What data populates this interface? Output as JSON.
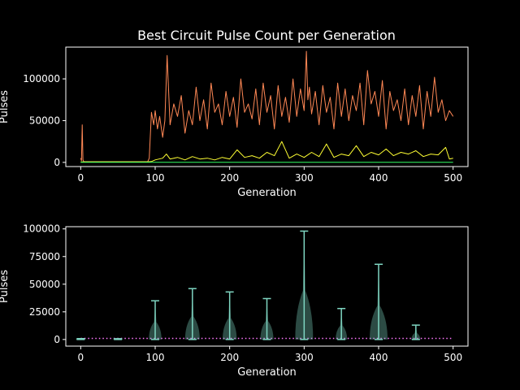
{
  "title": "Best Circuit Pulse Count per Generation",
  "colors": {
    "background": "#000000",
    "axes": "#ffffff",
    "max_line": "#ff8855",
    "mean_line": "#ffff33",
    "best_line": "#33ff66",
    "violin": "#7fd6c2",
    "dotted": "#ff77ff"
  },
  "chart_data": [
    {
      "type": "line",
      "title": "Best Circuit Pulse Count per Generation",
      "xlabel": "Generation",
      "ylabel": "Pulses",
      "xlim": [
        -20,
        520
      ],
      "ylim": [
        -5000,
        138000
      ],
      "xticks": [
        0,
        100,
        200,
        300,
        400,
        500
      ],
      "yticks": [
        0,
        50000,
        100000
      ],
      "ytick_labels": [
        "0",
        "50000",
        "100000"
      ],
      "grid": false,
      "series": [
        {
          "color": "#ff8855",
          "x": [
            0,
            1,
            2,
            3,
            4,
            5,
            10,
            20,
            30,
            40,
            50,
            60,
            70,
            80,
            90,
            92,
            95,
            98,
            100,
            103,
            106,
            110,
            113,
            116,
            120,
            125,
            130,
            135,
            140,
            145,
            150,
            155,
            160,
            165,
            170,
            175,
            180,
            185,
            190,
            195,
            200,
            205,
            210,
            215,
            220,
            225,
            230,
            235,
            240,
            245,
            250,
            255,
            260,
            265,
            270,
            275,
            280,
            285,
            290,
            295,
            300,
            303,
            305,
            307,
            310,
            315,
            320,
            325,
            330,
            335,
            340,
            345,
            350,
            355,
            360,
            365,
            370,
            375,
            380,
            385,
            390,
            395,
            400,
            405,
            410,
            415,
            420,
            425,
            430,
            435,
            440,
            445,
            450,
            455,
            460,
            465,
            470,
            475,
            480,
            485,
            490,
            495,
            500
          ],
          "y": [
            5000,
            2000,
            45000,
            3000,
            1000,
            800,
            800,
            800,
            800,
            800,
            800,
            800,
            800,
            800,
            800,
            5000,
            60000,
            45000,
            62000,
            40000,
            55000,
            30000,
            50000,
            128000,
            45000,
            70000,
            55000,
            80000,
            35000,
            62000,
            45000,
            90000,
            50000,
            75000,
            40000,
            95000,
            60000,
            70000,
            45000,
            85000,
            55000,
            78000,
            42000,
            100000,
            60000,
            70000,
            52000,
            88000,
            45000,
            95000,
            60000,
            80000,
            40000,
            92000,
            55000,
            78000,
            48000,
            100000,
            55000,
            88000,
            62000,
            133000,
            75000,
            90000,
            58000,
            85000,
            45000,
            92000,
            60000,
            78000,
            40000,
            95000,
            55000,
            88000,
            50000,
            80000,
            62000,
            95000,
            45000,
            110000,
            70000,
            85000,
            55000,
            98000,
            40000,
            85000,
            62000,
            75000,
            50000,
            88000,
            45000,
            80000,
            55000,
            92000,
            40000,
            85000,
            55000,
            102000,
            60000,
            75000,
            50000,
            62000,
            55000
          ]
        },
        {
          "color": "#ffff33",
          "x": [
            0,
            10,
            20,
            30,
            40,
            50,
            60,
            70,
            80,
            90,
            95,
            100,
            110,
            115,
            120,
            130,
            140,
            150,
            160,
            170,
            180,
            190,
            200,
            210,
            220,
            230,
            240,
            250,
            260,
            270,
            280,
            290,
            300,
            310,
            320,
            330,
            340,
            350,
            360,
            370,
            380,
            390,
            400,
            410,
            420,
            430,
            440,
            450,
            460,
            470,
            480,
            490,
            495,
            500
          ],
          "y": [
            500,
            500,
            500,
            500,
            500,
            500,
            500,
            500,
            500,
            500,
            1000,
            3000,
            5000,
            10000,
            4000,
            6000,
            3000,
            7000,
            4000,
            5000,
            3000,
            6000,
            4000,
            15000,
            6000,
            8000,
            5000,
            12000,
            8000,
            25000,
            5000,
            10000,
            6000,
            12000,
            7000,
            22000,
            6000,
            10000,
            8000,
            20000,
            7000,
            12000,
            9000,
            16000,
            8000,
            12000,
            10000,
            14000,
            7000,
            10000,
            9000,
            18000,
            4000,
            5000
          ]
        },
        {
          "color": "#33ff66",
          "x": [
            0,
            100,
            200,
            300,
            400,
            500
          ],
          "y": [
            200,
            200,
            200,
            200,
            200,
            200
          ]
        }
      ]
    },
    {
      "type": "violin",
      "xlabel": "Generation",
      "ylabel": "Pulses",
      "xlim": [
        -20,
        520
      ],
      "ylim": [
        -6000,
        102000
      ],
      "xticks": [
        0,
        100,
        200,
        300,
        400,
        500
      ],
      "yticks": [
        0,
        25000,
        50000,
        75000,
        100000
      ],
      "ytick_labels": [
        "0",
        "25000",
        "50000",
        "75000",
        "100000"
      ],
      "grid": false,
      "violins": [
        {
          "x": 0,
          "min": 0,
          "max": 800
        },
        {
          "x": 50,
          "min": 0,
          "max": 700
        },
        {
          "x": 100,
          "min": 0,
          "max": 35000
        },
        {
          "x": 150,
          "min": 0,
          "max": 46000
        },
        {
          "x": 200,
          "min": 0,
          "max": 43000
        },
        {
          "x": 250,
          "min": 0,
          "max": 37000
        },
        {
          "x": 300,
          "min": 0,
          "max": 98000
        },
        {
          "x": 350,
          "min": 0,
          "max": 28000
        },
        {
          "x": 400,
          "min": 0,
          "max": 68000
        },
        {
          "x": 450,
          "min": 0,
          "max": 13000
        }
      ],
      "dotted_line": {
        "x": [
          0,
          500
        ],
        "y": [
          1000,
          1000
        ],
        "color": "#ff77ff"
      }
    }
  ]
}
